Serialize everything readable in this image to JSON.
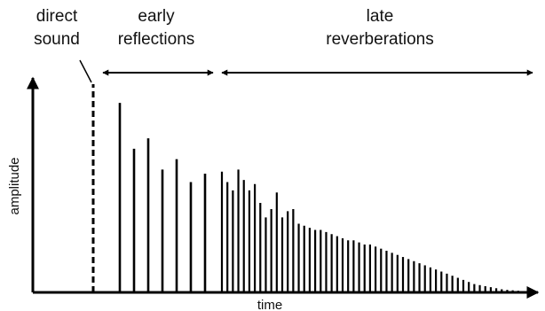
{
  "labels": {
    "direct_line1": "direct",
    "direct_line2": "sound",
    "early_line1": "early",
    "early_line2": "reflections",
    "late_line1": "late",
    "late_line2": "reverberations",
    "y_axis": "amplitude",
    "x_axis": "time"
  },
  "colors": {
    "ink": "#000000"
  },
  "impulse_response": {
    "direct_sound_amplitude": 1.0,
    "early_reflections": [
      0.91,
      0.69,
      0.74,
      0.59,
      0.64,
      0.53,
      0.57
    ],
    "late_reverberations": [
      0.58,
      0.53,
      0.49,
      0.59,
      0.54,
      0.49,
      0.52,
      0.43,
      0.36,
      0.4,
      0.48,
      0.36,
      0.39,
      0.4,
      0.33,
      0.32,
      0.31,
      0.3,
      0.3,
      0.29,
      0.28,
      0.27,
      0.26,
      0.25,
      0.25,
      0.24,
      0.23,
      0.23,
      0.22,
      0.21,
      0.2,
      0.19,
      0.18,
      0.17,
      0.16,
      0.15,
      0.14,
      0.13,
      0.12,
      0.11,
      0.1,
      0.09,
      0.08,
      0.07,
      0.06,
      0.05,
      0.04,
      0.035,
      0.03,
      0.025,
      0.02,
      0.015,
      0.012,
      0.01,
      0.008,
      0.006
    ]
  }
}
